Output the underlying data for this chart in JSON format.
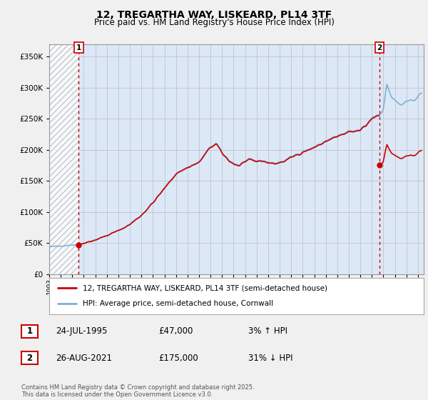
{
  "title": "12, TREGARTHA WAY, LISKEARD, PL14 3TF",
  "subtitle": "Price paid vs. HM Land Registry's House Price Index (HPI)",
  "legend_line1": "12, TREGARTHA WAY, LISKEARD, PL14 3TF (semi-detached house)",
  "legend_line2": "HPI: Average price, semi-detached house, Cornwall",
  "annotation1_date": "24-JUL-1995",
  "annotation1_price": "£47,000",
  "annotation1_hpi": "3% ↑ HPI",
  "annotation2_date": "26-AUG-2021",
  "annotation2_price": "£175,000",
  "annotation2_hpi": "31% ↓ HPI",
  "footnote": "Contains HM Land Registry data © Crown copyright and database right 2025.\nThis data is licensed under the Open Government Licence v3.0.",
  "sale1_x": 1995.56,
  "sale1_y": 47000,
  "sale2_x": 2021.65,
  "sale2_y": 175000,
  "bg_color": "#f0f0f0",
  "plot_bg_color": "#dce8f5",
  "hpi_color": "#7fb0d8",
  "sale_color": "#cc0000",
  "vline_color": "#cc0000",
  "ylim": [
    0,
    370000
  ],
  "xlim_start": 1993.0,
  "xlim_end": 2025.5,
  "yticks": [
    0,
    50000,
    100000,
    150000,
    200000,
    250000,
    300000,
    350000
  ],
  "xticks": [
    1993,
    1994,
    1995,
    1996,
    1997,
    1998,
    1999,
    2000,
    2001,
    2002,
    2003,
    2004,
    2005,
    2006,
    2007,
    2008,
    2009,
    2010,
    2011,
    2012,
    2013,
    2014,
    2015,
    2016,
    2017,
    2018,
    2019,
    2020,
    2021,
    2022,
    2023,
    2024,
    2025
  ]
}
